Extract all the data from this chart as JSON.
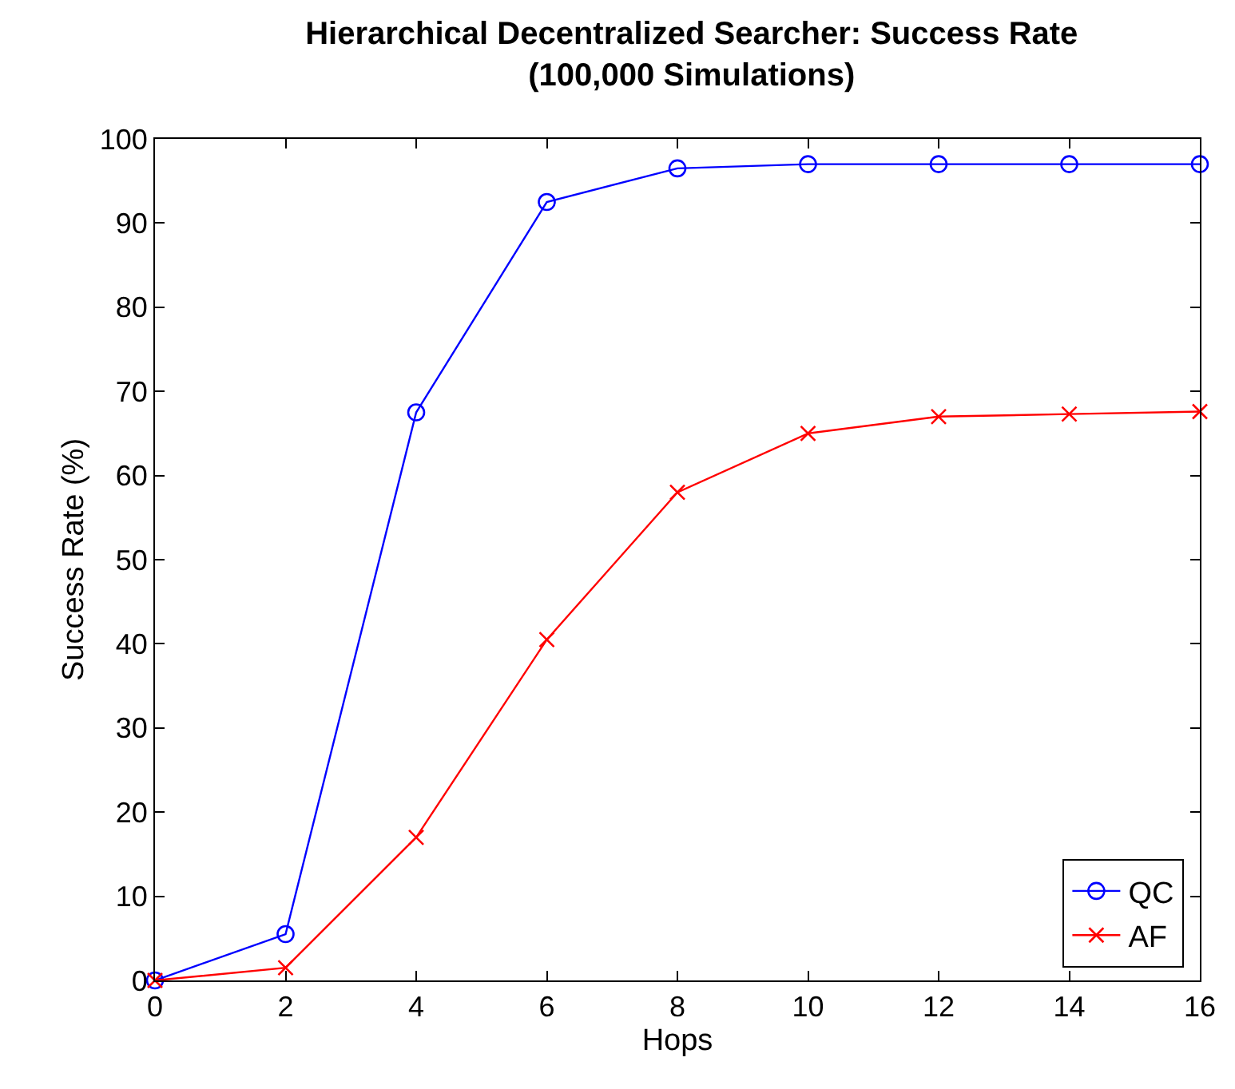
{
  "chart_data": {
    "type": "line",
    "title": "Hierarchical Decentralized Searcher: Success Rate\n(100,000 Simulations)",
    "xlabel": "Hops",
    "ylabel": "Success Rate (%)",
    "x": [
      0,
      2,
      4,
      6,
      8,
      10,
      12,
      14,
      16
    ],
    "series": [
      {
        "name": "QC",
        "color": "#0000ff",
        "marker": "circle",
        "values": [
          0,
          5.5,
          67.5,
          92.5,
          96.5,
          97,
          97,
          97,
          97
        ]
      },
      {
        "name": "AF",
        "color": "#ff0000",
        "marker": "cross",
        "values": [
          0,
          1.5,
          17,
          40.5,
          58,
          65,
          67,
          67.3,
          67.6
        ]
      }
    ],
    "xlim": [
      0,
      16
    ],
    "xticks": [
      0,
      2,
      4,
      6,
      8,
      10,
      12,
      14,
      16
    ],
    "ylim": [
      0,
      100
    ],
    "yticks": [
      0,
      10,
      20,
      30,
      40,
      50,
      60,
      70,
      80,
      90,
      100
    ],
    "legend": "bottom right",
    "line_style": "solid"
  }
}
